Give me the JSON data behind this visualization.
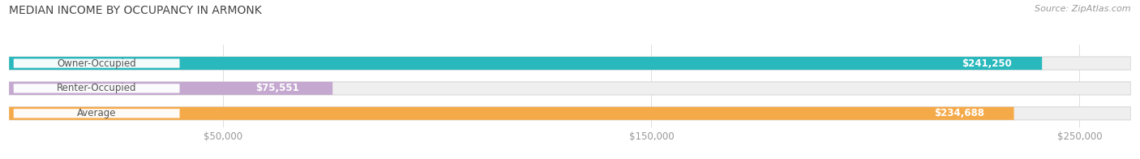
{
  "title": "MEDIAN INCOME BY OCCUPANCY IN ARMONK",
  "source": "Source: ZipAtlas.com",
  "categories": [
    "Owner-Occupied",
    "Renter-Occupied",
    "Average"
  ],
  "values": [
    241250,
    75551,
    234688
  ],
  "bar_colors": [
    "#29b8bc",
    "#c4a8d0",
    "#f5aa4a"
  ],
  "bar_labels": [
    "$241,250",
    "$75,551",
    "$234,688"
  ],
  "xlim_max": 262000,
  "xticks": [
    50000,
    150000,
    250000
  ],
  "xtick_labels": [
    "$50,000",
    "$150,000",
    "$250,000"
  ],
  "background_color": "#ffffff",
  "bar_bg_color": "#efefef",
  "bar_border_color": "#d8d8d8",
  "title_fontsize": 10,
  "source_fontsize": 8,
  "label_fontsize": 8.5,
  "tick_fontsize": 8.5,
  "fig_width": 14.06,
  "fig_height": 1.96
}
